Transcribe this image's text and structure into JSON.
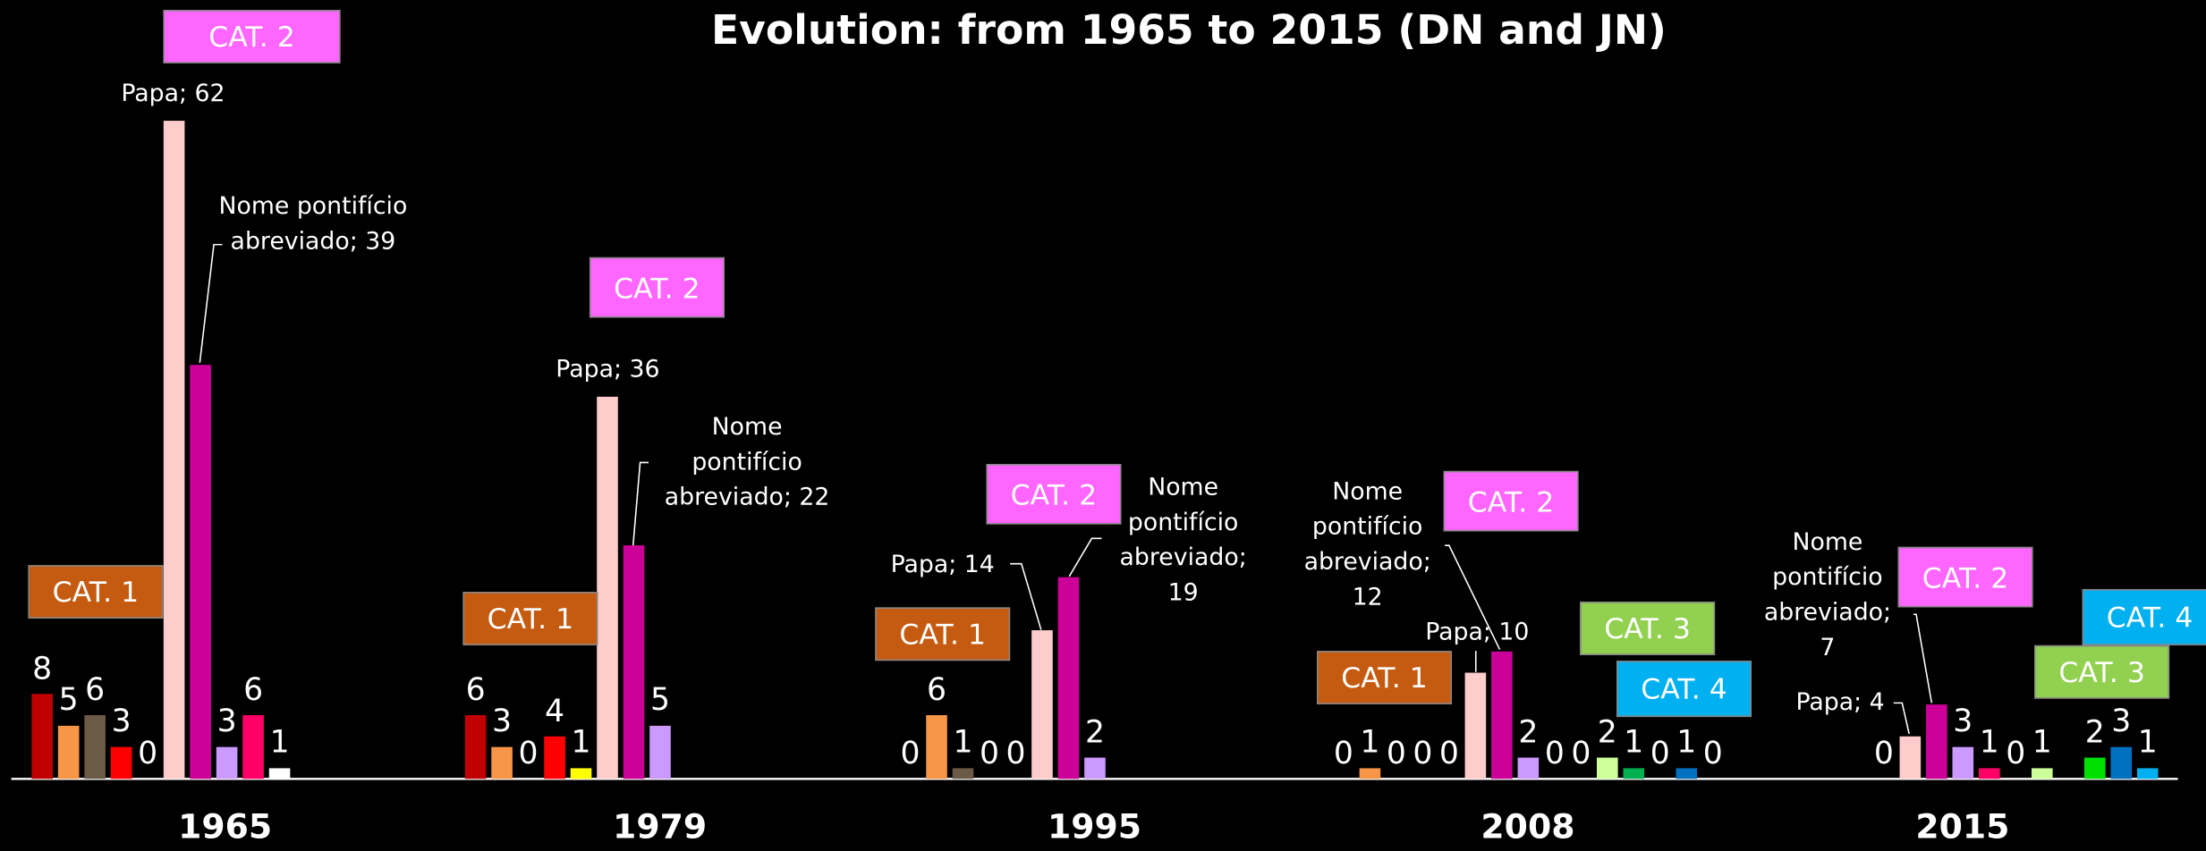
{
  "chart_data": {
    "type": "bar",
    "title": "Evolution: from 1965 to 2015 (DN and JN)",
    "groups": [
      {
        "label": "1965",
        "values": [
          8,
          5,
          6,
          3,
          0,
          62,
          39,
          3,
          6,
          1
        ],
        "colors": [
          "#c00000",
          "#f79646",
          "#6b5a46",
          "#ff0000",
          null,
          "#ffcccc",
          "#cc0099",
          "#cc99ff",
          "#ff0066",
          "#ffffff"
        ],
        "value_labels": {
          "5": "Papa; 62",
          "6": "Nome pontifício abreviado; 39"
        },
        "annotations": [
          {
            "text": "CAT. 2",
            "color": "#ff66ff"
          },
          {
            "text": "CAT. 1",
            "color": "#c55a11"
          }
        ]
      },
      {
        "label": "1979",
        "values": [
          6,
          3,
          0,
          4,
          1,
          36,
          22,
          5
        ],
        "colors": [
          "#c00000",
          "#f79646",
          null,
          "#ff0000",
          "#ffff00",
          "#ffcccc",
          "#cc0099",
          "#cc99ff"
        ],
        "value_labels": {
          "5": "Papa; 36",
          "6": "Nome pontifício abreviado; 22"
        },
        "annotations": [
          {
            "text": "CAT. 2",
            "color": "#ff66ff"
          },
          {
            "text": "CAT. 1",
            "color": "#c55a11"
          }
        ]
      },
      {
        "label": "1995",
        "values": [
          0,
          6,
          1,
          0,
          0,
          14,
          19,
          2
        ],
        "colors": [
          null,
          "#f79646",
          "#6b5a46",
          null,
          null,
          "#ffcccc",
          "#cc0099",
          "#cc99ff"
        ],
        "value_labels": {
          "5": "Papa; 14",
          "6": "Nome pontifício abreviado; 19"
        },
        "annotations": [
          {
            "text": "CAT. 2",
            "color": "#ff66ff"
          },
          {
            "text": "CAT. 1",
            "color": "#c55a11"
          }
        ]
      },
      {
        "label": "2008",
        "values": [
          0,
          1,
          0,
          0,
          0,
          10,
          12,
          2,
          0,
          0,
          2,
          1,
          0,
          1,
          0
        ],
        "colors": [
          null,
          "#f79646",
          null,
          null,
          null,
          "#ffcccc",
          "#cc0099",
          "#cc99ff",
          null,
          null,
          "#ccff99",
          "#00b050",
          null,
          "#0070c0",
          null
        ],
        "value_labels": {
          "5": "Papa; 10",
          "6": "Nome pontifício abreviado; 12"
        },
        "annotations": [
          {
            "text": "CAT. 2",
            "color": "#ff66ff"
          },
          {
            "text": "CAT. 1",
            "color": "#c55a11"
          },
          {
            "text": "CAT. 3",
            "color": "#92d050"
          },
          {
            "text": "CAT. 4",
            "color": "#00b0f0"
          }
        ]
      },
      {
        "label": "2015",
        "values": [
          0,
          4,
          7,
          3,
          1,
          0,
          1,
          null,
          2,
          3,
          1
        ],
        "colors": [
          null,
          "#ffcccc",
          "#cc0099",
          "#cc99ff",
          "#ff0066",
          null,
          "#ccff99",
          null,
          "#00e000",
          "#0070c0",
          "#00b0f0"
        ],
        "value_labels": {
          "1": "Papa; 4",
          "2": "Nome pontifício abreviado; 7"
        },
        "annotations": [
          {
            "text": "CAT. 2",
            "color": "#ff66ff"
          },
          {
            "text": "CAT. 3",
            "color": "#92d050"
          },
          {
            "text": "CAT. 4",
            "color": "#00b0f0"
          }
        ]
      }
    ]
  }
}
